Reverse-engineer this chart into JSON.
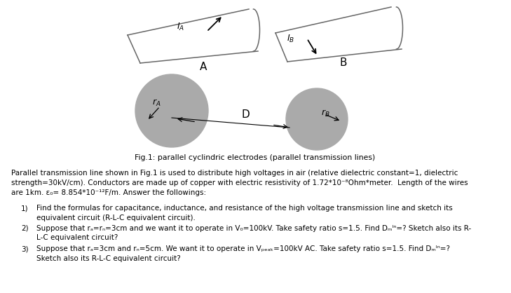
{
  "background_color": "#ffffff",
  "fig_caption": "Fig.1: parallel cyclindric electrodes (parallel transmission lines)",
  "para_line1": "Parallel transmission line shown in Fig.1 is used to distribute high voltages in air (relative dielectric constant=1, dielectric",
  "para_line2": "strength=30kV/cm). Conductors are made up of copper with electric resistivity of 1.72*10⁻⁸Ohm*meter.  Length of the wires",
  "para_line3": "are 1km. ε₀= 8.854*10⁻¹²F/m. Answer the followings:",
  "item1a": "Find the formulas for capacitance, inductance, and resistance of the high voltage transmission line and sketch its",
  "item1b": "equivalent circuit (R-L-C equivalent circuit).",
  "item2a": "Suppose that rₐ=rₙ=3cm and we want it to operate in V₀=100kV. Take safety ratio s=1.5. Find Dₘᴵⁿ=? Sketch also its R-",
  "item2b": "L-C equivalent circuit?",
  "item3a": "Suppose that rₐ=3cm and rₙ=5cm. We want it to operate in Vₚₑₐₖ=100kV AC. Take safety ratio s=1.5. Find Dₘᴵⁿ=?",
  "item3b": "Sketch also its R-L-C equivalent circuit?",
  "circle_color": "#aaaaaa",
  "cable_color": "#999999",
  "line_color": "#666666"
}
